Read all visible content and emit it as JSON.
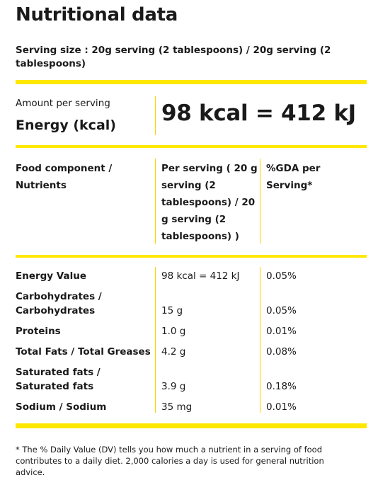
{
  "title": "Nutritional data",
  "serving_size": "Serving size : 20g serving (2 tablespoons) / 20g serving (2 tablespoons)",
  "amount_label": "Amount per serving",
  "energy_label": "Energy (kcal)",
  "energy_value": "98 kcal = 412 kJ",
  "table": {
    "headers": [
      "Food component / Nutrients",
      "Per serving ( 20 g serving (2 tablespoons) / 20 g serving (2 tablespoons) )",
      "%GDA per Serving*"
    ],
    "rows": [
      {
        "name": "Energy Value",
        "amount": "98 kcal = 412 kJ",
        "gda": "0.05%"
      },
      {
        "name": "Carbohydrates / Carbohydrates",
        "amount": "15 g",
        "gda": "0.05%"
      },
      {
        "name": "Proteins",
        "amount": "1.0 g",
        "gda": "0.01%"
      },
      {
        "name": "Total Fats / Total Greases",
        "amount": "4.2 g",
        "gda": "0.08%"
      },
      {
        "name": "Saturated fats / Saturated fats",
        "amount": "3.9 g",
        "gda": "0.18%"
      },
      {
        "name": "Sodium / Sodium",
        "amount": "35 mg",
        "gda": "0.01%"
      }
    ]
  },
  "footnote": "* The % Daily Value (DV) tells you how much a nutrient in a serving of food contributes to a daily diet. 2,000 calories a day is used for general nutrition advice.",
  "colors": {
    "accent": "#ffe800",
    "divider": "#ffd400",
    "text": "#1a1a1a"
  }
}
